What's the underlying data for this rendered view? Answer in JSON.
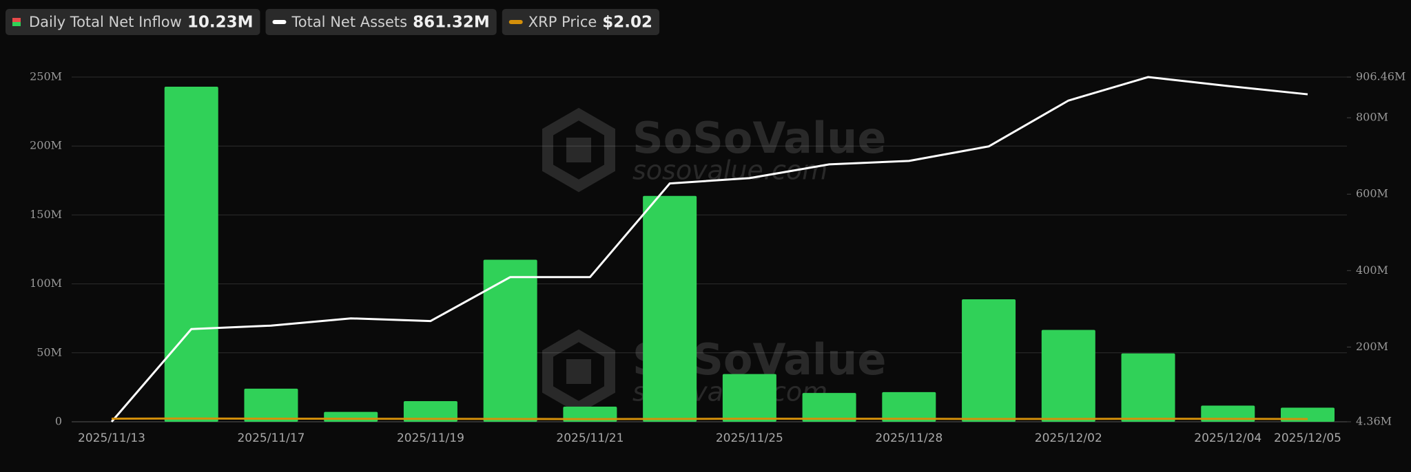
{
  "chart_data": {
    "type": "bar-line",
    "categories": [
      "2025/11/13",
      null,
      "2025/11/17",
      null,
      "2025/11/19",
      null,
      "2025/11/21",
      null,
      "2025/11/25",
      null,
      "2025/11/28",
      null,
      "2025/12/02",
      null,
      "2025/12/04",
      "2025/12/05"
    ],
    "series": [
      {
        "name": "Daily Total Net Inflow",
        "latest_label": "10.23M",
        "type": "bar",
        "axis": "y",
        "color": "#30d158",
        "values": [
          null,
          243,
          24,
          7.2,
          15,
          117.5,
          11,
          163.8,
          34.6,
          20.9,
          21.5,
          88.8,
          66.6,
          49.6,
          11.7,
          10.23
        ]
      },
      {
        "name": "Total Net Assets",
        "latest_label": "861.32M",
        "type": "line",
        "axis": "y2",
        "color": "#ffffff",
        "values": [
          4.36,
          247,
          256,
          275,
          268,
          383,
          383,
          628,
          642,
          678,
          687,
          725,
          845,
          906.46,
          883,
          861.32
        ]
      },
      {
        "name": "XRP Price",
        "latest_label": "$2.02",
        "type": "line",
        "axis": "y",
        "color": "#d4900a",
        "values": [
          2.27,
          2.38,
          2.22,
          2.19,
          2.15,
          2.05,
          1.96,
          2.04,
          2.22,
          2.19,
          2.18,
          2.03,
          2.06,
          2.21,
          2.15,
          2.02
        ]
      }
    ],
    "ylim": [
      0,
      250
    ],
    "yticks": [
      0,
      {
        "value": 50,
        "label": "50M"
      },
      {
        "value": 100,
        "label": "100M"
      },
      {
        "value": 150,
        "label": "150M"
      },
      {
        "value": 200,
        "label": "200M"
      },
      {
        "value": 250,
        "label": "250M"
      }
    ],
    "y2lim": [
      4.36,
      906.46
    ],
    "y2ticks": [
      {
        "value": 4.36,
        "label": "4.36M"
      },
      {
        "value": 200,
        "label": "200M"
      },
      {
        "value": 400,
        "label": "400M"
      },
      {
        "value": 600,
        "label": "600M"
      },
      {
        "value": 800,
        "label": "800M"
      },
      {
        "value": 906.46,
        "label": "906.46M"
      }
    ],
    "grid": true,
    "watermark": {
      "brand": "SoSoValue",
      "site": "sosovalue.com"
    }
  }
}
